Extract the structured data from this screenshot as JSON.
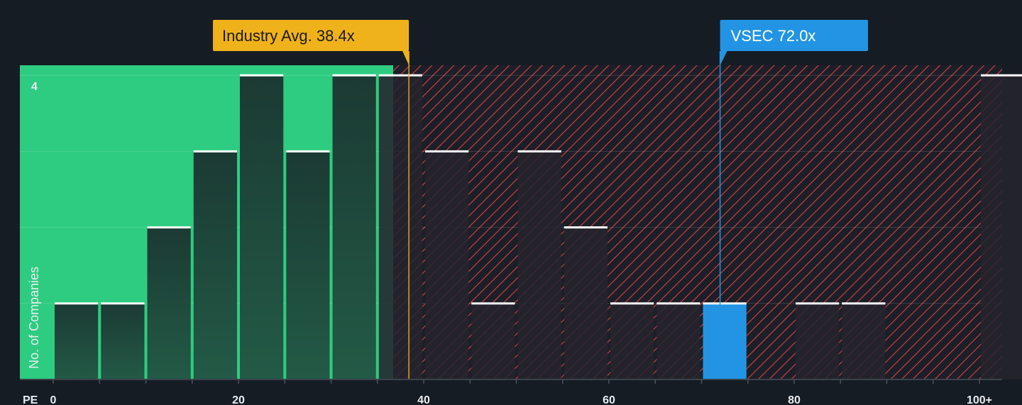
{
  "chart_data": {
    "type": "bar",
    "title": "",
    "xlabel": "PE",
    "ylabel": "No. of Companies",
    "x_ticks": [
      "0",
      "20",
      "40",
      "60",
      "80",
      "100+"
    ],
    "y_ticks": [
      "4"
    ],
    "ylim": [
      0,
      4.14
    ],
    "xlim": [
      0,
      102
    ],
    "bin_width": 5,
    "bins": [
      {
        "start": 0,
        "count": 1
      },
      {
        "start": 5,
        "count": 1
      },
      {
        "start": 10,
        "count": 2
      },
      {
        "start": 15,
        "count": 3
      },
      {
        "start": 20,
        "count": 4
      },
      {
        "start": 25,
        "count": 3
      },
      {
        "start": 30,
        "count": 4
      },
      {
        "start": 35,
        "count": 4
      },
      {
        "start": 40,
        "count": 3
      },
      {
        "start": 45,
        "count": 1
      },
      {
        "start": 50,
        "count": 3
      },
      {
        "start": 55,
        "count": 2
      },
      {
        "start": 60,
        "count": 1
      },
      {
        "start": 65,
        "count": 1
      },
      {
        "start": 70,
        "count": 1,
        "highlight": true
      },
      {
        "start": 80,
        "count": 1
      },
      {
        "start": 85,
        "count": 1
      },
      {
        "start": 100,
        "count": 4
      }
    ],
    "industry_avg": {
      "label": "Industry Avg. 38.4x",
      "value": 38.4
    },
    "company": {
      "label": "VSEC 72.0x",
      "value": 72.0
    },
    "colors": {
      "background": "#161c24",
      "good_zone": "#2ecc80",
      "bar_good": "#1f4b3d",
      "bar_bad": "#25242d",
      "hatch": "#d6404a",
      "highlight": "#2394e4",
      "industry_callout": "#f0b21b",
      "company_callout": "#2394e4"
    }
  }
}
